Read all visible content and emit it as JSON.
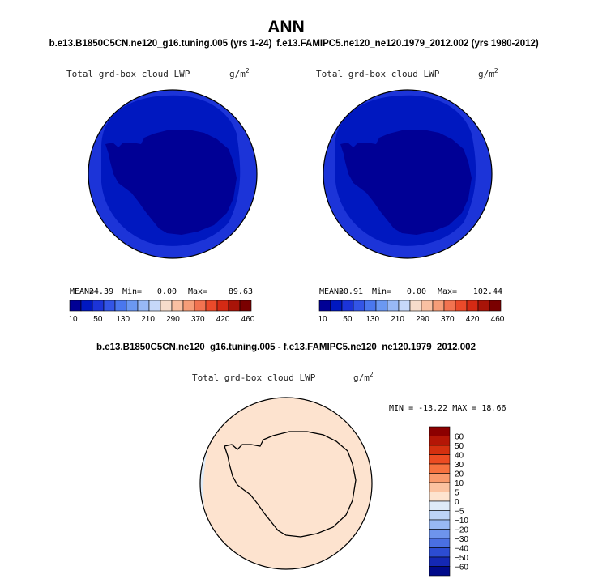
{
  "page": {
    "title": "ANN",
    "subtitle_left": "b.e13.B1850C5CN.ne120_g16.tuning.005 (yrs 1-24)",
    "subtitle_right": "f.e13.FAMIPC5.ne120_ne120.1979_2012.002 (yrs 1980-2012)",
    "diff_title": "b.e13.B1850C5CN.ne120_g16.tuning.005 - f.e13.FAMIPC5.ne120_ne120.1979_2012.002"
  },
  "chart_data": [
    {
      "type": "heatmap",
      "projection": "south-polar-stereographic",
      "variable_label": "Total grd-box cloud LWP",
      "units_label": "g/m",
      "units_sup": "2",
      "stats": {
        "mean_label": "MEAN=",
        "mean": "24.39",
        "min_label": "Min=",
        "min": "0.00",
        "max_label": "Max=",
        "max": "89.63"
      },
      "colorbar_levels": [
        "10",
        "50",
        "130",
        "210",
        "290",
        "370",
        "420",
        "460"
      ],
      "colorbar_colors": [
        "#000095",
        "#0018c0",
        "#1c34d8",
        "#3355e6",
        "#4a77ee",
        "#6b98f2",
        "#98b8f6",
        "#c6d8f9",
        "#f6dccb",
        "#f9c0a2",
        "#f69d78",
        "#f27350",
        "#eb4a2a",
        "#d42a14",
        "#a81408",
        "#7a0000"
      ],
      "bands": [
        {
          "value": "10-50",
          "color": "#1c34d8"
        },
        {
          "value": "1-10",
          "color": "#0018c0"
        },
        {
          "value": "0-1",
          "color": "#000095"
        }
      ]
    },
    {
      "type": "heatmap",
      "projection": "south-polar-stereographic",
      "variable_label": "Total grd-box cloud LWP",
      "units_label": "g/m",
      "units_sup": "2",
      "stats": {
        "mean_label": "MEAN=",
        "mean": "20.91",
        "min_label": "Min=",
        "min": "0.00",
        "max_label": "Max=",
        "max": "102.44"
      },
      "colorbar_levels": [
        "10",
        "50",
        "130",
        "210",
        "290",
        "370",
        "420",
        "460"
      ],
      "colorbar_colors": [
        "#000095",
        "#0018c0",
        "#1c34d8",
        "#3355e6",
        "#4a77ee",
        "#6b98f2",
        "#98b8f6",
        "#c6d8f9",
        "#f6dccb",
        "#f9c0a2",
        "#f69d78",
        "#f27350",
        "#eb4a2a",
        "#d42a14",
        "#a81408",
        "#7a0000"
      ],
      "bands": [
        {
          "value": "10-50",
          "color": "#1c34d8"
        },
        {
          "value": "1-10",
          "color": "#0018c0"
        },
        {
          "value": "0-1",
          "color": "#000095"
        }
      ]
    },
    {
      "type": "heatmap",
      "projection": "south-polar-stereographic",
      "variable_label": "Total grd-box cloud LWP",
      "units_label": "g/m",
      "units_sup": "2",
      "stats_text": "MIN = -13.22 MAX =  18.66",
      "stats": {
        "min": -13.22,
        "max": 18.66
      },
      "colorbar_levels": [
        "60",
        "50",
        "40",
        "30",
        "20",
        "10",
        "5",
        "0",
        "−5",
        "−10",
        "−20",
        "−30",
        "−40",
        "−50",
        "−60"
      ],
      "colorbar_colors": [
        "#8c0000",
        "#b41606",
        "#d4300f",
        "#ec4c22",
        "#f6723f",
        "#f99a6c",
        "#fbc2a0",
        "#fde3cf",
        "#deebf8",
        "#bcd4f6",
        "#98b8f3",
        "#6e94ec",
        "#4a6fe2",
        "#2c4cd2",
        "#1428b4",
        "#000a8a"
      ],
      "bands": [
        {
          "value": "0-5",
          "color": "#fde3cf"
        },
        {
          "value": "5-10",
          "color": "#fbc2a0"
        },
        {
          "value": "-5-0",
          "color": "#deebf8"
        }
      ]
    }
  ]
}
